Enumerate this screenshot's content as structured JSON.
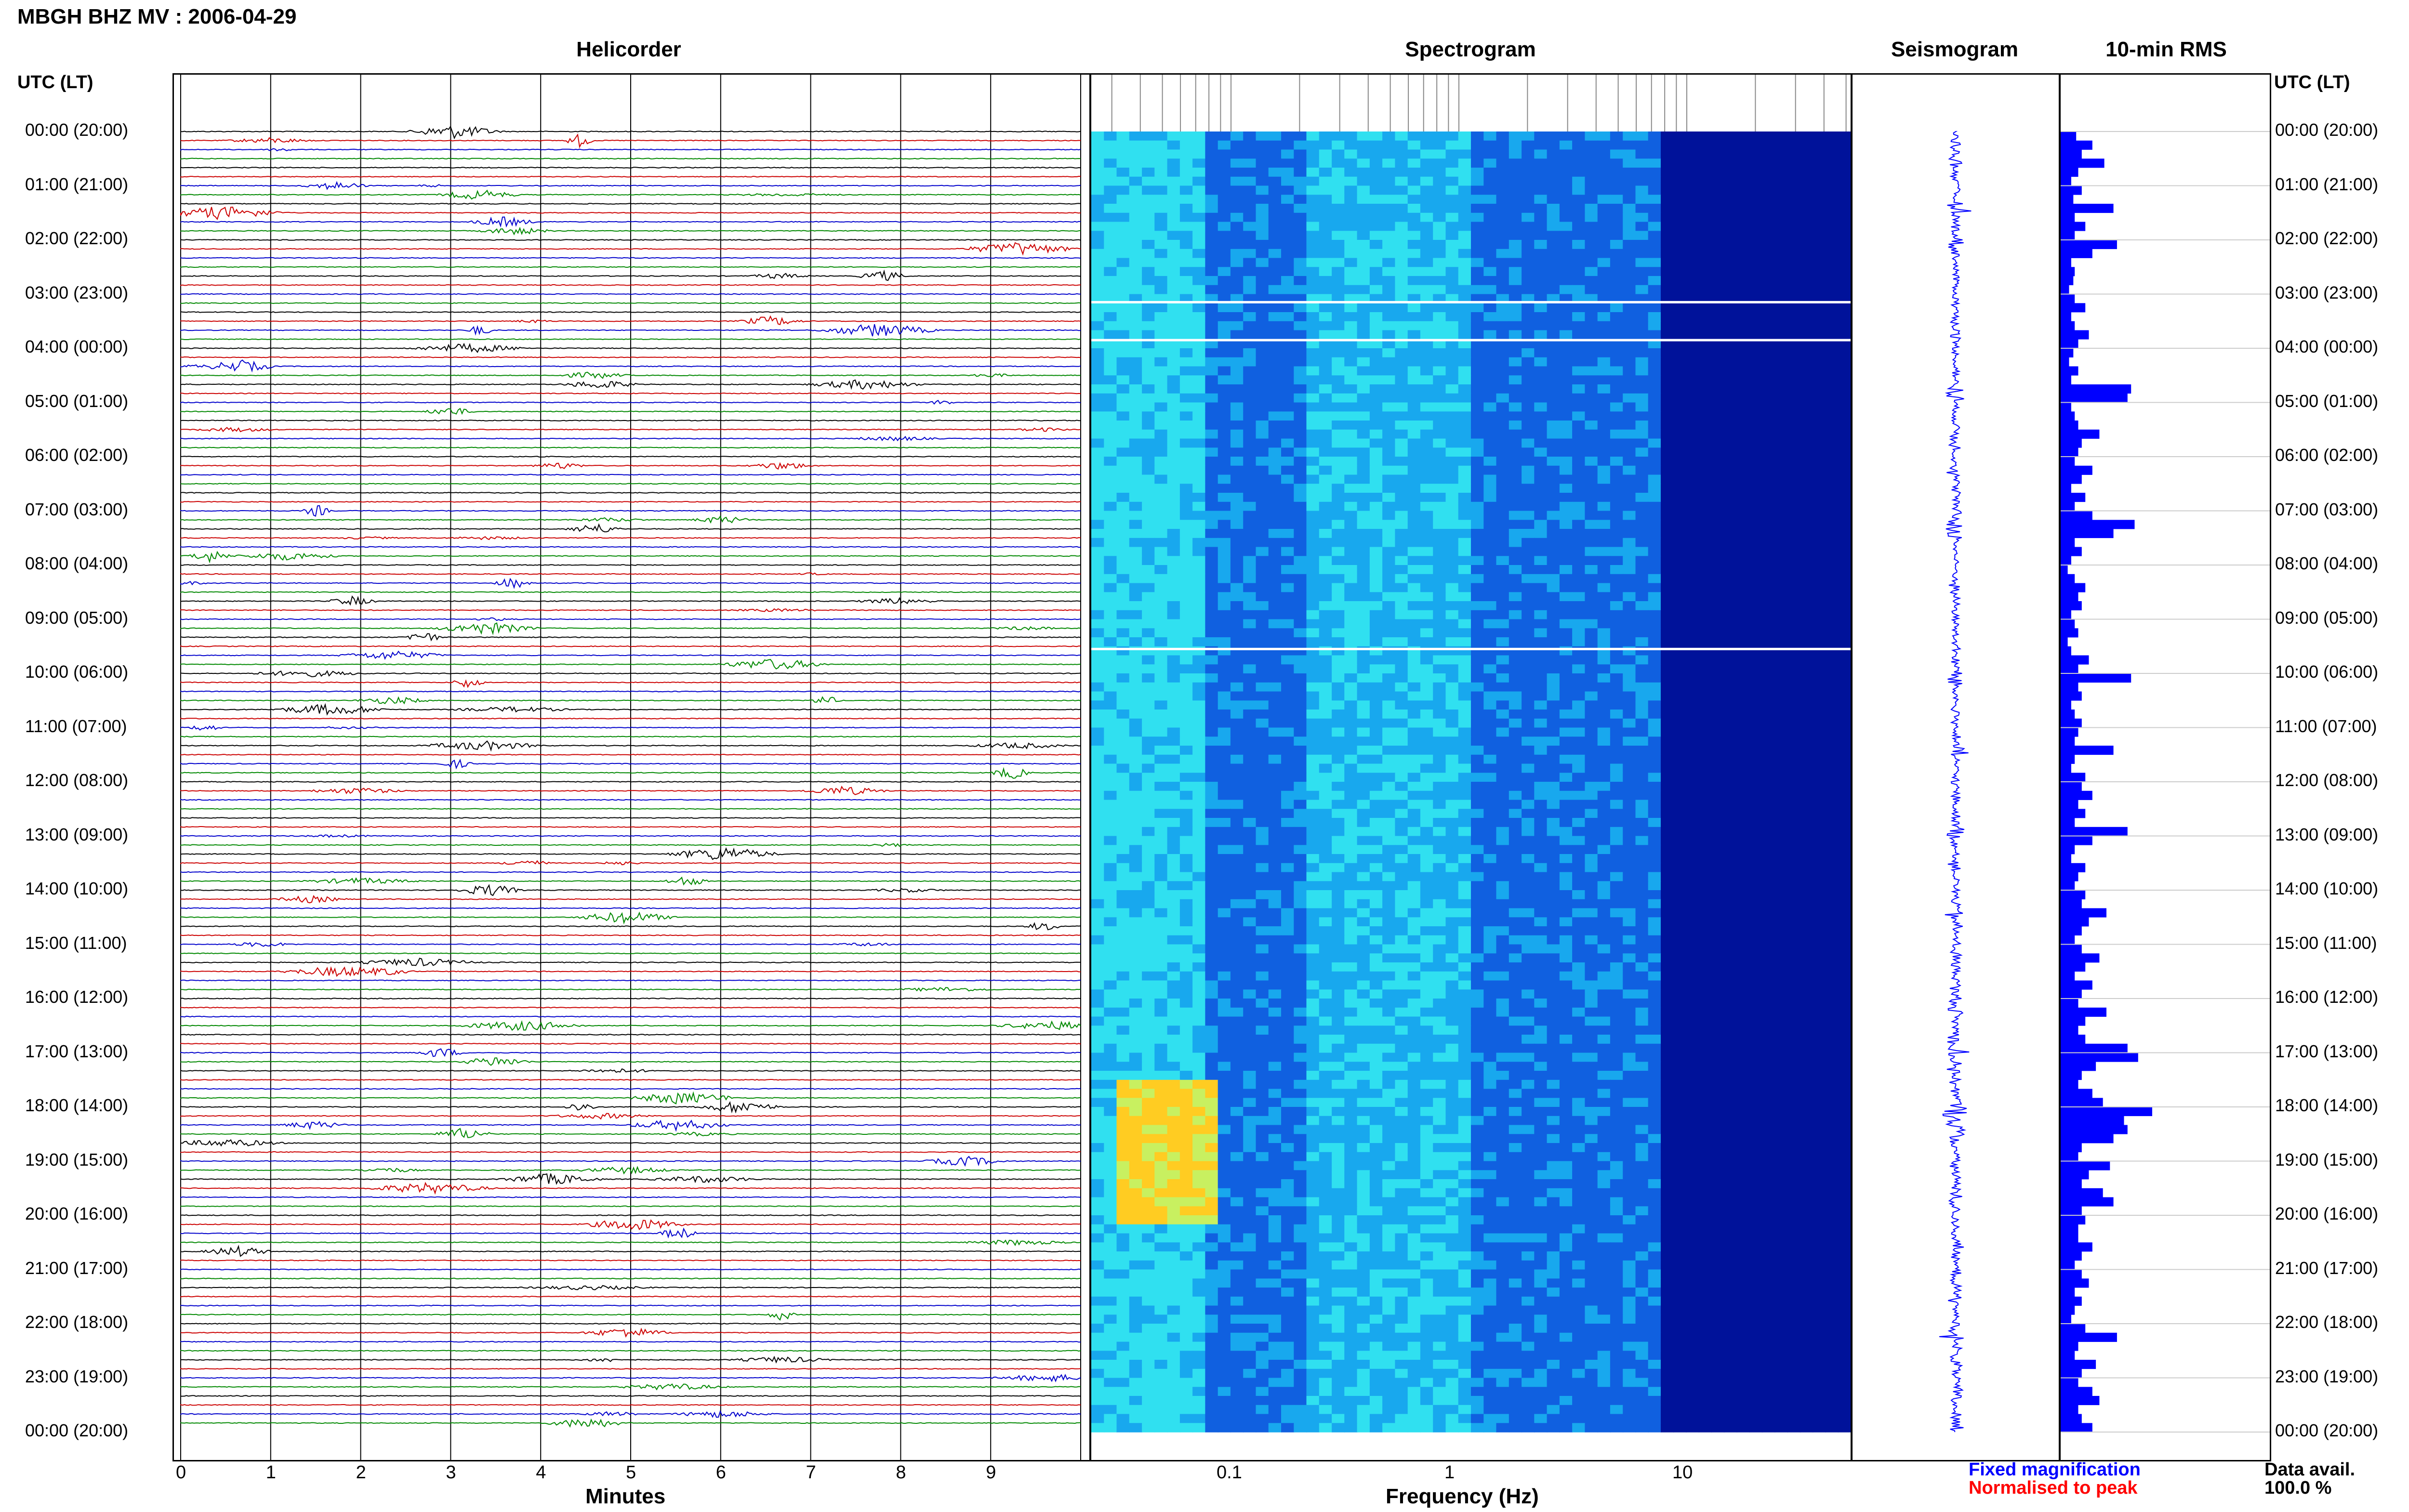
{
  "page": {
    "title": "MBGH BHZ MV : 2006-04-29",
    "utc_lt_label": "UTC (LT)",
    "utc_lt_label_right": "UTC (LT)"
  },
  "panels": {
    "helicorder": "Helicorder",
    "spectrogram": "Spectrogram",
    "seismogram": "Seismogram",
    "rms": "10-min RMS"
  },
  "time_labels": [
    "00:00 (20:00)",
    "01:00 (21:00)",
    "02:00 (22:00)",
    "03:00 (23:00)",
    "04:00 (00:00)",
    "05:00 (01:00)",
    "06:00 (02:00)",
    "07:00 (03:00)",
    "08:00 (04:00)",
    "09:00 (05:00)",
    "10:00 (06:00)",
    "11:00 (07:00)",
    "12:00 (08:00)",
    "13:00 (09:00)",
    "14:00 (10:00)",
    "15:00 (11:00)",
    "16:00 (12:00)",
    "17:00 (13:00)",
    "18:00 (14:00)",
    "19:00 (15:00)",
    "20:00 (16:00)",
    "21:00 (17:00)",
    "22:00 (18:00)",
    "23:00 (19:00)",
    "00:00 (20:00)"
  ],
  "helicorder_axis": {
    "xlabel": "Minutes",
    "ticks": [
      "0",
      "1",
      "2",
      "3",
      "4",
      "5",
      "6",
      "7",
      "8",
      "9"
    ]
  },
  "spectrogram_axis": {
    "xlabel": "Frequency (Hz)",
    "ticks": [
      "0.1",
      "1",
      "10"
    ],
    "scale": "log"
  },
  "legend": {
    "fixed": "Fixed magnification",
    "normalised": "Normalised to peak",
    "fixed_color": "#0000ff",
    "normalised_color": "#ff0000"
  },
  "data_avail": {
    "label": "Data avail.",
    "value": "100.0 %"
  },
  "colors": {
    "trace_cycle": [
      "#000000",
      "#cc0000",
      "#0000cc",
      "#008800"
    ],
    "rms_bar": "#0000ff",
    "seismogram": "#0000ff",
    "spectrogram_low": "#00008b",
    "spectrogram_high": "#ffcc00"
  },
  "chart_data": [
    {
      "type": "heatmap",
      "title": "Spectrogram",
      "xlabel": "Frequency (Hz)",
      "ylabel": "UTC (LT)",
      "xscale": "log",
      "x_ticks": [
        0.1,
        1,
        10
      ],
      "note": "Strong low-frequency energy near 17:30-20:00 UTC between 0.03 and 0.08 Hz"
    },
    {
      "type": "bar",
      "title": "10-min RMS",
      "orientation": "horizontal",
      "categories_hours": [
        0.0,
        0.17,
        0.33,
        0.5,
        0.67,
        0.83,
        1.0,
        1.17,
        1.33,
        1.5,
        1.67,
        1.83,
        2.0,
        2.17,
        2.33,
        2.5,
        2.67,
        2.83,
        3.0,
        3.17,
        3.33,
        3.5,
        3.67,
        3.83,
        4.0,
        4.17,
        4.33,
        4.5,
        4.67,
        4.83,
        5.0,
        5.17,
        5.33,
        5.5,
        5.67,
        5.83,
        6.0,
        6.17,
        6.33,
        6.5,
        6.67,
        6.83,
        7.0,
        7.17,
        7.33,
        7.5,
        7.67,
        7.83,
        8.0,
        8.17,
        8.33,
        8.5,
        8.67,
        8.83,
        9.0,
        9.17,
        9.33,
        9.5,
        9.67,
        9.83,
        10.0,
        10.17,
        10.33,
        10.5,
        10.67,
        10.83,
        11.0,
        11.17,
        11.33,
        11.5,
        11.67,
        11.83,
        12.0,
        12.17,
        12.33,
        12.5,
        12.67,
        12.83,
        13.0,
        13.17,
        13.33,
        13.5,
        13.67,
        13.83,
        14.0,
        14.17,
        14.33,
        14.5,
        14.67,
        14.83,
        15.0,
        15.17,
        15.33,
        15.5,
        15.67,
        15.83,
        16.0,
        16.17,
        16.33,
        16.5,
        16.67,
        16.83,
        17.0,
        17.17,
        17.33,
        17.5,
        17.67,
        17.83,
        18.0,
        18.17,
        18.33,
        18.5,
        18.67,
        18.83,
        19.0,
        19.17,
        19.33,
        19.5,
        19.67,
        19.83,
        20.0,
        20.17,
        20.33,
        20.5,
        20.67,
        20.83,
        21.0,
        21.17,
        21.33,
        21.5,
        21.67,
        21.83,
        22.0,
        22.17,
        22.33,
        22.5,
        22.67,
        22.83,
        23.0,
        23.17,
        23.33,
        23.5,
        23.67,
        23.83
      ],
      "values": [
        0.22,
        0.45,
        0.3,
        0.62,
        0.25,
        0.15,
        0.3,
        0.18,
        0.75,
        0.2,
        0.35,
        0.2,
        0.8,
        0.45,
        0.15,
        0.2,
        0.18,
        0.12,
        0.2,
        0.35,
        0.15,
        0.2,
        0.4,
        0.25,
        0.18,
        0.12,
        0.25,
        0.15,
        1.0,
        0.95,
        0.15,
        0.2,
        0.25,
        0.55,
        0.3,
        0.25,
        0.2,
        0.45,
        0.3,
        0.15,
        0.35,
        0.2,
        0.45,
        1.05,
        0.75,
        0.2,
        0.3,
        0.15,
        0.1,
        0.2,
        0.35,
        0.25,
        0.3,
        0.15,
        0.2,
        0.25,
        0.1,
        0.15,
        0.4,
        0.25,
        1.0,
        0.25,
        0.3,
        0.15,
        0.2,
        0.3,
        0.25,
        0.2,
        0.75,
        0.2,
        0.15,
        0.35,
        0.3,
        0.45,
        0.25,
        0.35,
        0.2,
        0.95,
        0.45,
        0.2,
        0.15,
        0.35,
        0.25,
        0.2,
        0.35,
        0.3,
        0.65,
        0.4,
        0.3,
        0.2,
        0.3,
        0.55,
        0.35,
        0.2,
        0.45,
        0.3,
        0.25,
        0.65,
        0.35,
        0.25,
        0.35,
        0.95,
        1.1,
        0.5,
        0.3,
        0.25,
        0.45,
        0.6,
        1.3,
        0.9,
        0.95,
        0.75,
        0.3,
        0.25,
        0.7,
        0.4,
        0.3,
        0.6,
        0.75,
        0.3,
        0.35,
        0.25,
        0.25,
        0.45,
        0.3,
        0.2,
        0.3,
        0.4,
        0.2,
        0.3,
        0.2,
        0.15,
        0.35,
        0.8,
        0.25,
        0.2,
        0.5,
        0.3,
        0.25,
        0.45,
        0.55,
        0.25,
        0.3,
        0.45
      ]
    }
  ]
}
